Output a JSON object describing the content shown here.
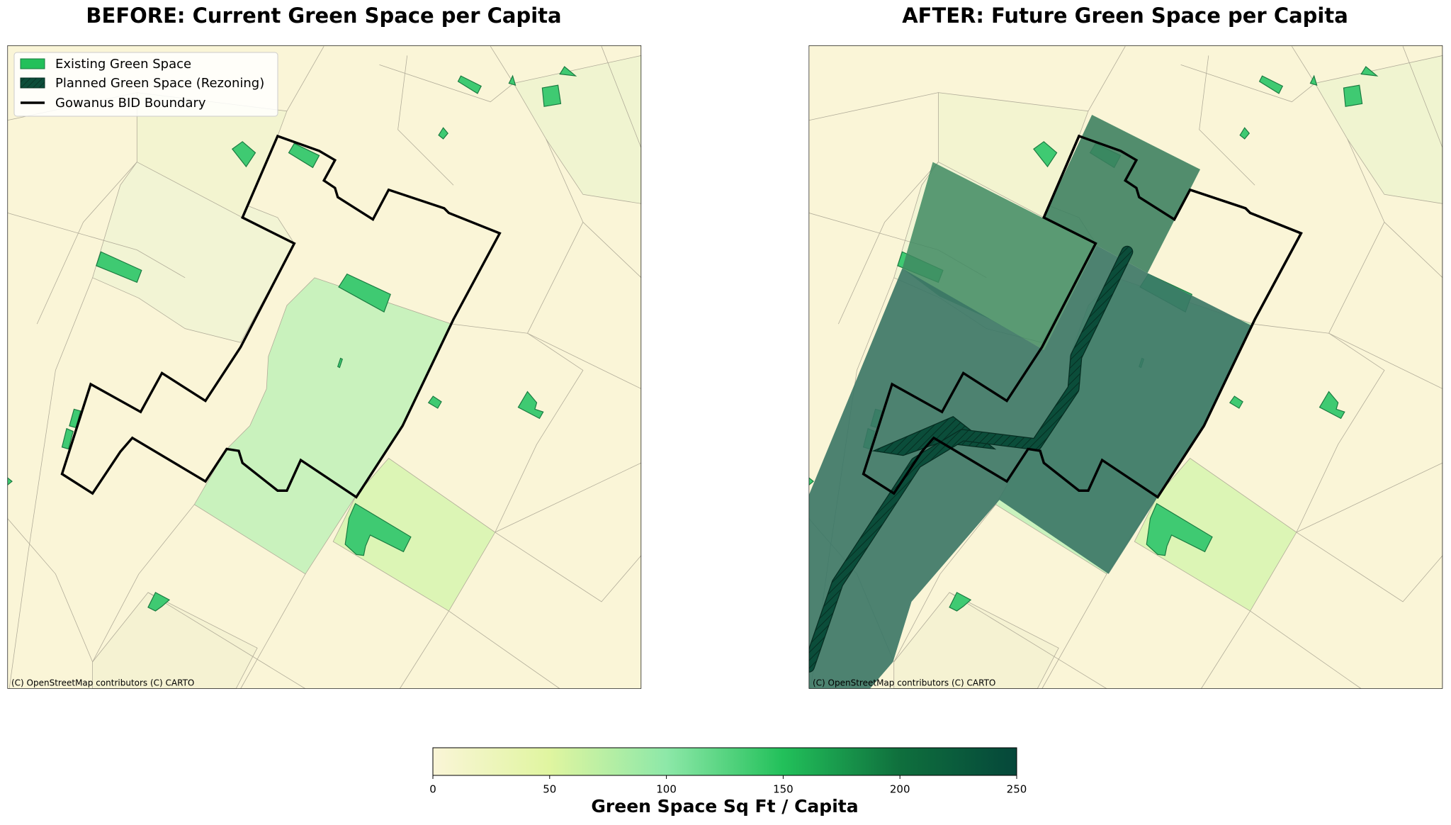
{
  "panels": [
    {
      "title": "BEFORE: Current Green Space per Capita",
      "attribution": "(C) OpenStreetMap contributors (C) CARTO"
    },
    {
      "title": "AFTER: Future Green Space per Capita",
      "attribution": "(C) OpenStreetMap contributors (C) CARTO"
    }
  ],
  "legend": [
    "Existing Green Space",
    "Planned Green Space (Rezoning)",
    "Gowanus BID Boundary"
  ],
  "colorbar": {
    "label": "Green Space Sq Ft / Capita",
    "lim": [
      0,
      250
    ],
    "ticks": [
      0,
      50,
      100,
      150,
      200,
      250
    ],
    "colormap": [
      "#faf5d7",
      "#e0f5a0",
      "#8de8a8",
      "#22c05a",
      "#0f6f3d",
      "#05473a"
    ]
  }
}
